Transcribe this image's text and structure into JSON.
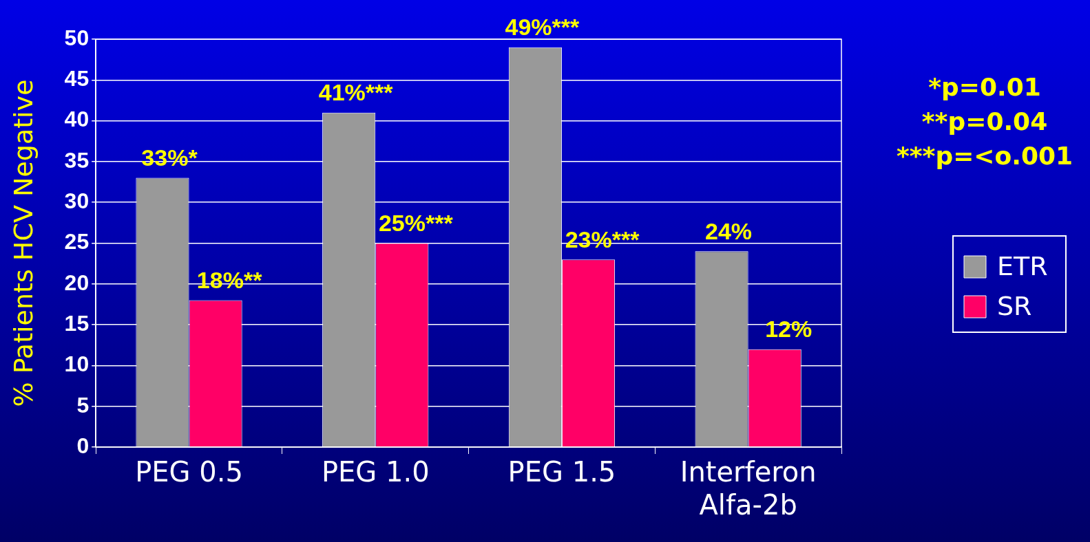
{
  "chart_data": {
    "type": "bar",
    "ylabel": "% Patients HCV Negative",
    "categories": [
      "PEG 0.5",
      "PEG 1.0",
      "PEG 1.5",
      "Interferon Alfa-2b"
    ],
    "series": [
      {
        "name": "ETR",
        "color": "#999999",
        "values": [
          33,
          41,
          49,
          24
        ],
        "value_labels": [
          "33%*",
          "41%***",
          "49%***",
          "24%"
        ]
      },
      {
        "name": "SR",
        "color": "#ff0066",
        "values": [
          18,
          25,
          23,
          12
        ],
        "value_labels": [
          "18%**",
          "25%***",
          "23%***",
          "12%"
        ]
      }
    ],
    "ylim": [
      0,
      50
    ],
    "yticks": [
      0,
      5,
      10,
      15,
      20,
      25,
      30,
      35,
      40,
      45,
      50
    ],
    "grid": "y",
    "legend": "right",
    "annotations": [
      "*p=0.01",
      "**p=0.04",
      "***p=<o.001"
    ]
  }
}
